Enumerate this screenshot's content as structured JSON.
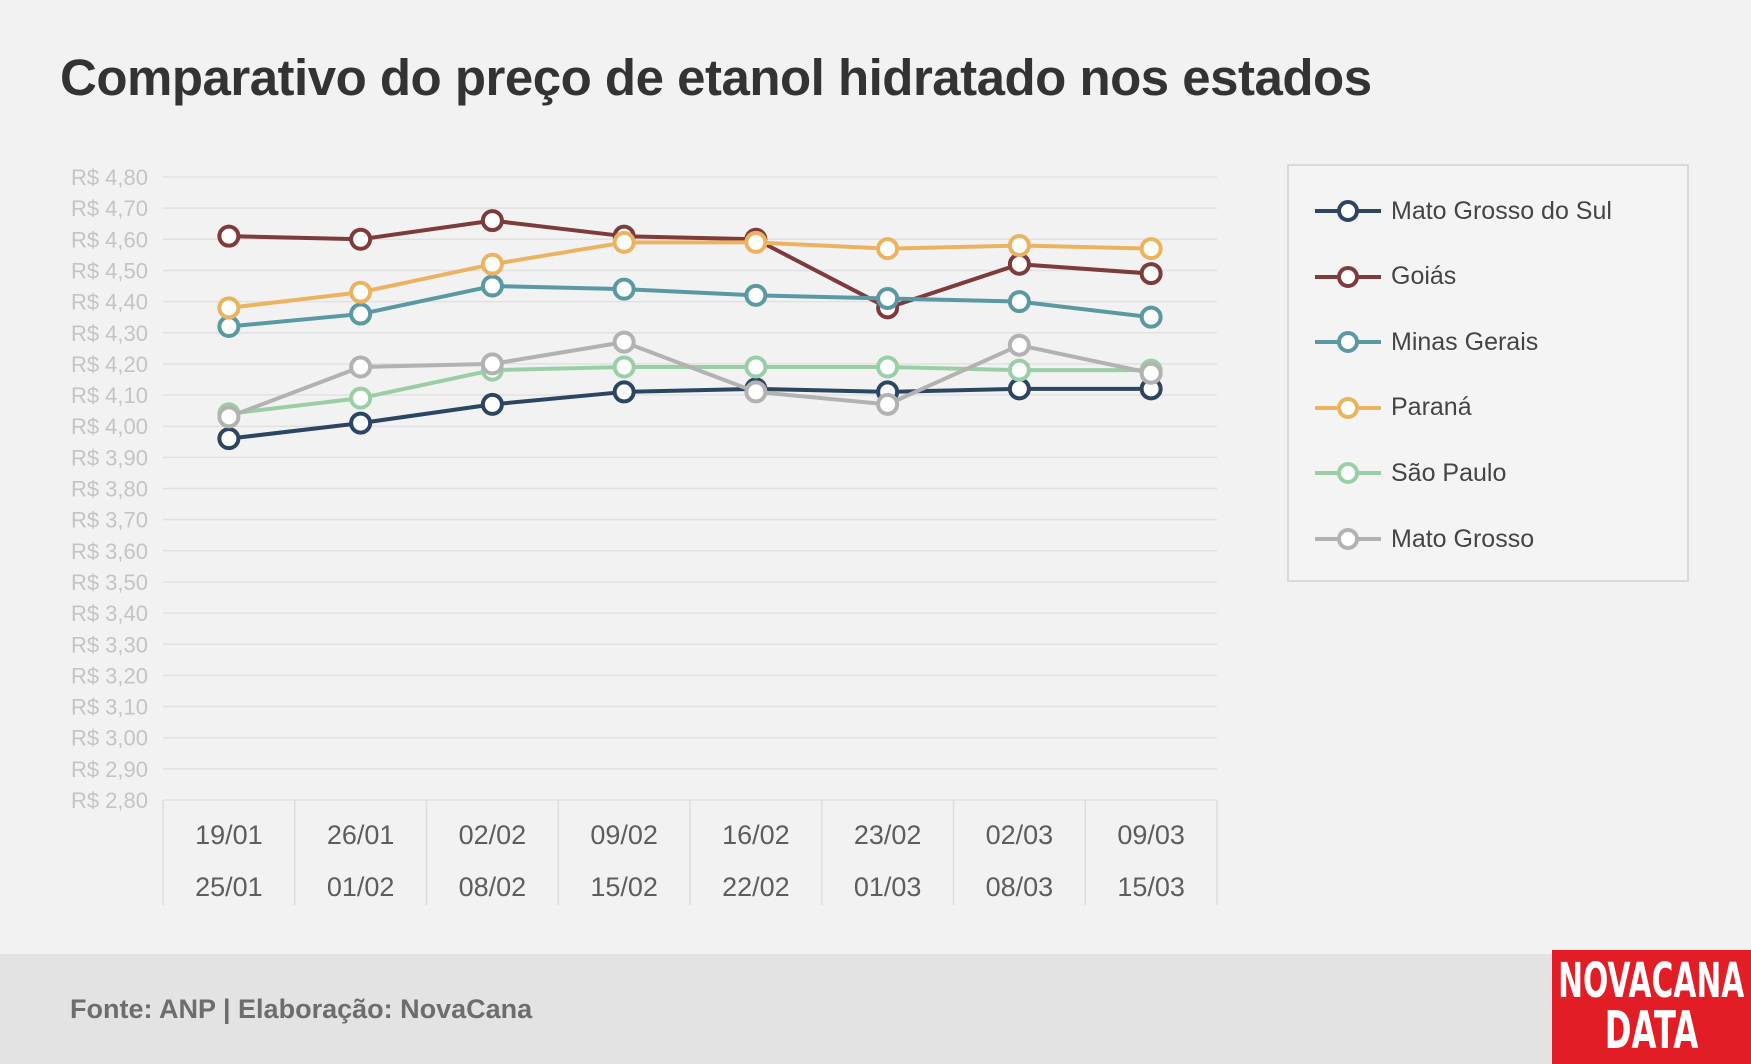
{
  "title": "Comparativo do preço de etanol hidratado nos estados",
  "source": "Fonte: ANP | Elaboração: NovaCana",
  "logo": {
    "line1": "NOVACANA",
    "line2": "DATA"
  },
  "chart_data": {
    "type": "line",
    "title": "Comparativo do preço de etanol hidratado nos estados",
    "x": [
      {
        "top": "19/01",
        "bottom": "25/01"
      },
      {
        "top": "26/01",
        "bottom": "01/02"
      },
      {
        "top": "02/02",
        "bottom": "08/02"
      },
      {
        "top": "09/02",
        "bottom": "15/02"
      },
      {
        "top": "16/02",
        "bottom": "22/02"
      },
      {
        "top": "23/02",
        "bottom": "01/03"
      },
      {
        "top": "02/03",
        "bottom": "08/03"
      },
      {
        "top": "09/03",
        "bottom": "15/03"
      }
    ],
    "ylim": [
      2.8,
      4.8
    ],
    "y_tick_step": 0.1,
    "y_tick_prefix": "R$ ",
    "grid": true,
    "legend_position": "right",
    "series": [
      {
        "name": "Mato Grosso do Sul",
        "color": "#2c4563",
        "values": [
          3.96,
          4.01,
          4.07,
          4.11,
          4.12,
          4.11,
          4.12,
          4.12
        ]
      },
      {
        "name": "Goiás",
        "color": "#7d3b3b",
        "values": [
          4.61,
          4.6,
          4.66,
          4.61,
          4.6,
          4.38,
          4.52,
          4.49
        ]
      },
      {
        "name": "Minas Gerais",
        "color": "#5a98a4",
        "values": [
          4.32,
          4.36,
          4.45,
          4.44,
          4.42,
          4.41,
          4.4,
          4.35
        ]
      },
      {
        "name": "Paraná",
        "color": "#ebb360",
        "values": [
          4.38,
          4.43,
          4.52,
          4.59,
          4.59,
          4.57,
          4.58,
          4.57
        ]
      },
      {
        "name": "São Paulo",
        "color": "#9acfa6",
        "values": [
          4.04,
          4.09,
          4.18,
          4.19,
          4.19,
          4.19,
          4.18,
          4.18
        ]
      },
      {
        "name": "Mato Grosso",
        "color": "#b2b2b2",
        "values": [
          4.03,
          4.19,
          4.2,
          4.27,
          4.11,
          4.07,
          4.26,
          4.17
        ]
      }
    ]
  }
}
